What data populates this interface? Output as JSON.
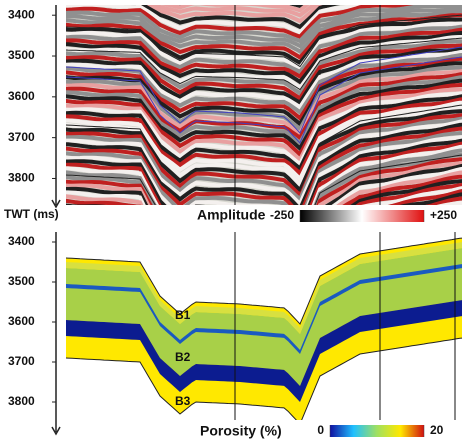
{
  "chart_data": [
    {
      "type": "seismic",
      "ylabel": "TWT (ms)",
      "ylim": [
        3375,
        3865
      ],
      "yticks": [
        3400,
        3500,
        3600,
        3700,
        3800
      ],
      "colorbar": {
        "label": "Amplitude",
        "colors": [
          "#000000",
          "#ffffff",
          "#e01010"
        ],
        "ticks": [
          -250,
          {
            "value": 250,
            "label": "+250"
          }
        ]
      }
    },
    {
      "type": "model",
      "ylim": [
        3375,
        3845
      ],
      "yticks": [
        3400,
        3500,
        3600,
        3700,
        3800
      ],
      "annotations": [
        "B1",
        "B2",
        "B3"
      ],
      "colorbar": {
        "label": "Porosity (%)",
        "colors": [
          "#1010a0",
          "#20c0ff",
          "#a0e060",
          "#ffe800",
          "#d01010"
        ],
        "ticks": [
          0,
          20
        ]
      }
    }
  ]
}
